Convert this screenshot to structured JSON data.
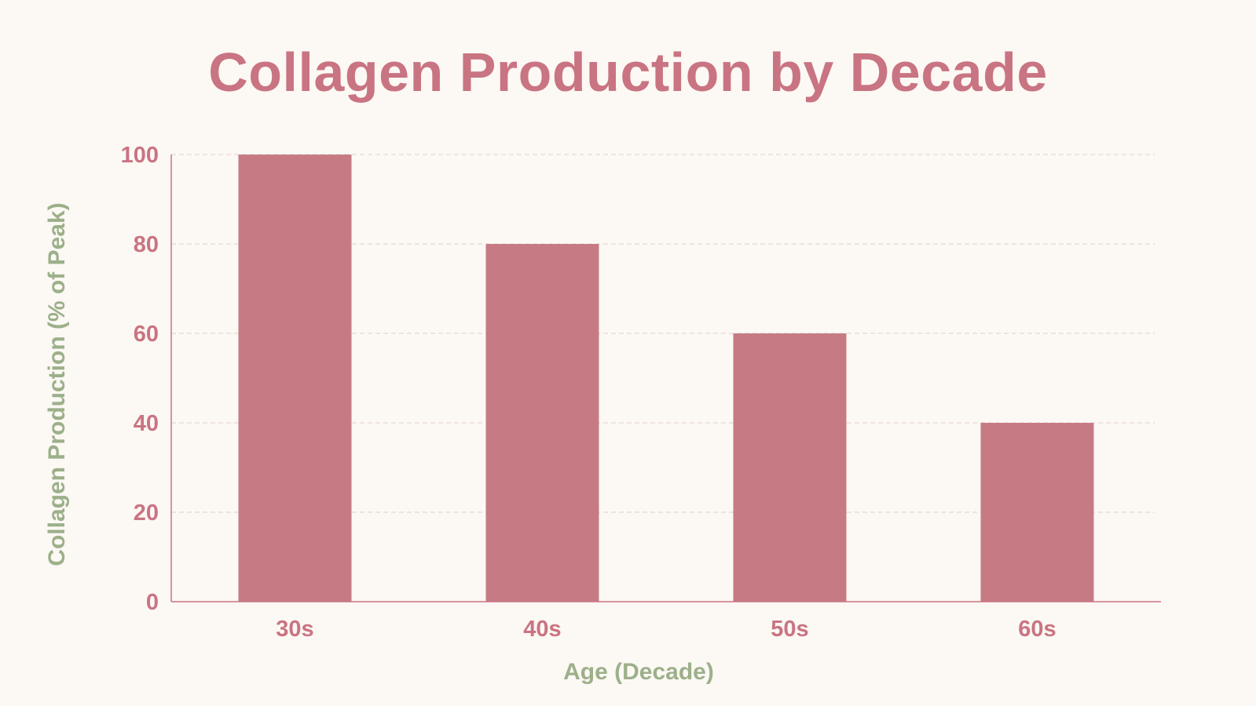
{
  "chart_data": {
    "type": "bar",
    "title": "Collagen Production by Decade",
    "xlabel": "Age (Decade)",
    "ylabel": "Collagen Production (% of Peak)",
    "categories": [
      "30s",
      "40s",
      "50s",
      "60s"
    ],
    "values": [
      100,
      80,
      60,
      40
    ],
    "ylim": [
      0,
      100
    ],
    "yticks": [
      0,
      20,
      40,
      60,
      80,
      100
    ],
    "grid": true,
    "legend": "none",
    "colors": {
      "bar": "#c67b84",
      "title": "#c97482",
      "tick_labels": "#c97482",
      "axis_titles": "#9cb08a",
      "axis_line": "#c97482",
      "grid": "#e6d6d0",
      "background": "#fcf8f4"
    }
  }
}
